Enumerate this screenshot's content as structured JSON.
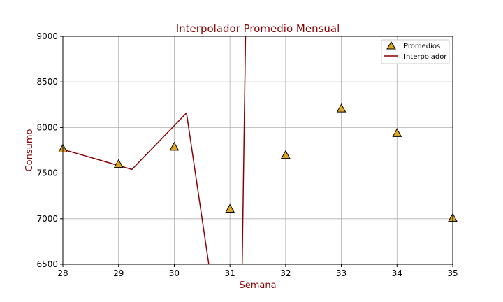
{
  "chart_data": {
    "type": "line",
    "title": "Interpolador Promedio Mensual",
    "xlabel": "Semana",
    "ylabel": "Consumo",
    "xlim": [
      28,
      35
    ],
    "ylim": [
      6500,
      9000
    ],
    "xticks": [
      28,
      29,
      30,
      31,
      32,
      33,
      34,
      35
    ],
    "yticks": [
      6500,
      7000,
      7500,
      8000,
      8500,
      9000
    ],
    "grid": true,
    "legend_position": "top-right",
    "series": [
      {
        "name": "Promedios",
        "kind": "scatter",
        "marker": "triangle",
        "color": "#DAA520",
        "x": [
          28,
          29,
          30,
          31,
          32,
          33,
          34,
          35
        ],
        "y": [
          7770,
          7600,
          7790,
          7110,
          7700,
          8210,
          7940,
          7010
        ]
      },
      {
        "name": "Interpolador",
        "kind": "line",
        "color": "#8B0000",
        "x": [
          28,
          29.24,
          30.22,
          30.62,
          31.22,
          31.28
        ],
        "y": [
          7760,
          7540,
          8160,
          6500,
          6500,
          9000
        ]
      }
    ]
  },
  "colors": {
    "title": "#8B0000",
    "axis_label": "#8B0000",
    "grid": "#b0b0b0"
  }
}
